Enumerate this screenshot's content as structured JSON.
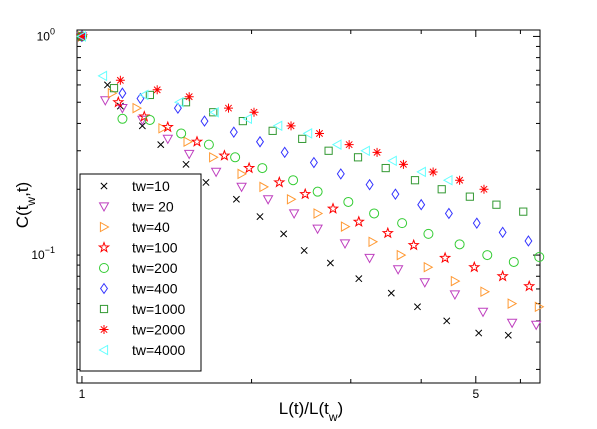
{
  "chart_data": {
    "type": "scatter",
    "xscale": "log",
    "yscale": "log",
    "xlim": [
      0.98,
      6.5
    ],
    "ylim": [
      0.026,
      1.07
    ],
    "xticks": [
      {
        "value": 1,
        "label": "1"
      },
      {
        "value": 5,
        "label": "5"
      }
    ],
    "yticks": [
      {
        "value": 1,
        "label": "10",
        "exp": "0"
      },
      {
        "value": 0.1,
        "label": "10",
        "exp": "−1"
      }
    ],
    "xlabel": {
      "main": "L(t)/L(t",
      "sub": "w",
      "end": ")"
    },
    "ylabel": {
      "main": "C(t",
      "sub": "w",
      "end": ",t)"
    },
    "grid": false,
    "legend_position": "lower-left",
    "series": [
      {
        "name": "tw=10",
        "marker": "x",
        "color": "#000000",
        "points": [
          [
            1.0,
            1.0
          ],
          [
            1.11,
            0.6
          ],
          [
            1.17,
            0.48
          ],
          [
            1.28,
            0.39
          ],
          [
            1.38,
            0.32
          ],
          [
            1.53,
            0.26
          ],
          [
            1.66,
            0.215
          ],
          [
            1.88,
            0.18
          ],
          [
            2.07,
            0.15
          ],
          [
            2.28,
            0.125
          ],
          [
            2.48,
            0.105
          ],
          [
            2.76,
            0.092
          ],
          [
            3.1,
            0.078
          ],
          [
            3.54,
            0.067
          ],
          [
            3.94,
            0.058
          ],
          [
            4.44,
            0.05
          ],
          [
            5.06,
            0.044
          ],
          [
            5.71,
            0.043
          ]
        ]
      },
      {
        "name": "tw= 20",
        "marker": "triangle-down",
        "color": "#bf40bf",
        "points": [
          [
            1.0,
            1.0
          ],
          [
            1.1,
            0.51
          ],
          [
            1.18,
            0.47
          ],
          [
            1.28,
            0.415
          ],
          [
            1.42,
            0.34
          ],
          [
            1.55,
            0.29
          ],
          [
            1.73,
            0.24
          ],
          [
            1.92,
            0.205
          ],
          [
            2.14,
            0.18
          ],
          [
            2.38,
            0.155
          ],
          [
            2.62,
            0.132
          ],
          [
            2.93,
            0.113
          ],
          [
            3.24,
            0.097
          ],
          [
            3.64,
            0.086
          ],
          [
            4.06,
            0.075
          ],
          [
            4.59,
            0.066
          ],
          [
            5.15,
            0.055
          ],
          [
            5.8,
            0.049
          ],
          [
            6.4,
            0.048
          ]
        ]
      },
      {
        "name": "tw=40",
        "marker": "triangle-right",
        "color": "#ff9933",
        "points": [
          [
            1.0,
            1.0
          ],
          [
            1.13,
            0.55
          ],
          [
            1.25,
            0.47
          ],
          [
            1.39,
            0.38
          ],
          [
            1.54,
            0.33
          ],
          [
            1.71,
            0.28
          ],
          [
            1.92,
            0.235
          ],
          [
            2.1,
            0.205
          ],
          [
            2.35,
            0.18
          ],
          [
            2.62,
            0.155
          ],
          [
            2.93,
            0.135
          ],
          [
            3.28,
            0.115
          ],
          [
            3.68,
            0.1
          ],
          [
            4.11,
            0.088
          ],
          [
            4.59,
            0.076
          ],
          [
            5.18,
            0.068
          ],
          [
            5.79,
            0.06
          ],
          [
            6.47,
            0.058
          ]
        ]
      },
      {
        "name": "tw=100",
        "marker": "star",
        "color": "#ff0000",
        "points": [
          [
            1.0,
            1.0
          ],
          [
            1.16,
            0.5
          ],
          [
            1.29,
            0.43
          ],
          [
            1.42,
            0.385
          ],
          [
            1.6,
            0.33
          ],
          [
            1.79,
            0.285
          ],
          [
            1.98,
            0.25
          ],
          [
            2.24,
            0.215
          ],
          [
            2.49,
            0.19
          ],
          [
            2.79,
            0.163
          ],
          [
            3.1,
            0.142
          ],
          [
            3.49,
            0.126
          ],
          [
            3.88,
            0.111
          ],
          [
            4.41,
            0.097
          ],
          [
            4.97,
            0.088
          ],
          [
            5.58,
            0.08
          ],
          [
            6.22,
            0.072
          ]
        ]
      },
      {
        "name": "tw=200",
        "marker": "circle",
        "color": "#33cc33",
        "points": [
          [
            1.0,
            1.0
          ],
          [
            1.18,
            0.42
          ],
          [
            1.32,
            0.415
          ],
          [
            1.5,
            0.36
          ],
          [
            1.68,
            0.32
          ],
          [
            1.87,
            0.28
          ],
          [
            2.09,
            0.25
          ],
          [
            2.37,
            0.22
          ],
          [
            2.62,
            0.195
          ],
          [
            2.97,
            0.175
          ],
          [
            3.3,
            0.155
          ],
          [
            3.7,
            0.14
          ],
          [
            4.12,
            0.125
          ],
          [
            4.68,
            0.112
          ],
          [
            5.24,
            0.1
          ],
          [
            5.84,
            0.093
          ],
          [
            6.48,
            0.098
          ]
        ]
      },
      {
        "name": "tw=400",
        "marker": "diamond",
        "color": "#3333ff",
        "points": [
          [
            1.0,
            1.0
          ],
          [
            1.18,
            0.55
          ],
          [
            1.27,
            0.52
          ],
          [
            1.48,
            0.47
          ],
          [
            1.65,
            0.41
          ],
          [
            1.86,
            0.365
          ],
          [
            2.07,
            0.33
          ],
          [
            2.29,
            0.295
          ],
          [
            2.58,
            0.265
          ],
          [
            2.88,
            0.235
          ],
          [
            3.24,
            0.21
          ],
          [
            3.6,
            0.19
          ],
          [
            4.0,
            0.17
          ],
          [
            4.48,
            0.155
          ],
          [
            5.02,
            0.14
          ],
          [
            5.58,
            0.127
          ],
          [
            6.2,
            0.116
          ]
        ]
      },
      {
        "name": "tw=1000",
        "marker": "square",
        "color": "#339933",
        "points": [
          [
            1.0,
            1.0
          ],
          [
            1.14,
            0.58
          ],
          [
            1.32,
            0.54
          ],
          [
            1.53,
            0.5
          ],
          [
            1.71,
            0.45
          ],
          [
            1.93,
            0.41
          ],
          [
            2.18,
            0.37
          ],
          [
            2.46,
            0.34
          ],
          [
            2.74,
            0.3
          ],
          [
            3.09,
            0.28
          ],
          [
            3.46,
            0.25
          ],
          [
            3.9,
            0.22
          ],
          [
            4.35,
            0.2
          ],
          [
            4.88,
            0.185
          ],
          [
            5.44,
            0.17
          ],
          [
            6.07,
            0.158
          ]
        ]
      },
      {
        "name": "tw=2000",
        "marker": "asterisk",
        "color": "#ff0000",
        "points": [
          [
            1.0,
            1.0
          ],
          [
            1.17,
            0.63
          ],
          [
            1.36,
            0.57
          ],
          [
            1.55,
            0.53
          ],
          [
            1.82,
            0.47
          ],
          [
            2.02,
            0.45
          ],
          [
            2.35,
            0.39
          ],
          [
            2.64,
            0.36
          ],
          [
            2.98,
            0.32
          ],
          [
            3.34,
            0.295
          ],
          [
            3.72,
            0.26
          ],
          [
            4.2,
            0.24
          ],
          [
            4.68,
            0.22
          ],
          [
            5.17,
            0.2
          ]
        ]
      },
      {
        "name": "tw=4000",
        "marker": "triangle-left",
        "color": "#66ffff",
        "points": [
          [
            1.0,
            1.0
          ],
          [
            1.09,
            0.66
          ],
          [
            1.29,
            0.54
          ],
          [
            1.49,
            0.5
          ],
          [
            1.72,
            0.45
          ],
          [
            1.97,
            0.42
          ],
          [
            2.23,
            0.39
          ],
          [
            2.52,
            0.36
          ],
          [
            2.84,
            0.32
          ],
          [
            3.19,
            0.3
          ],
          [
            3.56,
            0.27
          ],
          [
            4.01,
            0.24
          ],
          [
            4.47,
            0.22
          ]
        ]
      }
    ]
  }
}
